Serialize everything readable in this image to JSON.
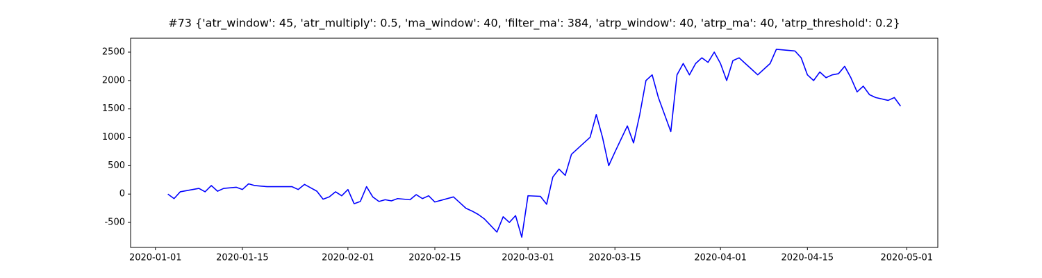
{
  "chart_data": {
    "type": "line",
    "title": "#73 {'atr_window': 45, 'atr_multiply': 0.5, 'ma_window': 40, 'filter_ma': 384, 'atrp_window': 40, 'atrp_ma': 40, 'atrp_threshold': 0.2}",
    "x": [
      "2020-01-03",
      "2020-01-04",
      "2020-01-05",
      "2020-01-08",
      "2020-01-09",
      "2020-01-10",
      "2020-01-11",
      "2020-01-12",
      "2020-01-14",
      "2020-01-15",
      "2020-01-16",
      "2020-01-17",
      "2020-01-18",
      "2020-01-19",
      "2020-01-23",
      "2020-01-24",
      "2020-01-25",
      "2020-01-26",
      "2020-01-27",
      "2020-01-28",
      "2020-01-29",
      "2020-01-30",
      "2020-01-31",
      "2020-02-01",
      "2020-02-02",
      "2020-02-03",
      "2020-02-04",
      "2020-02-05",
      "2020-02-06",
      "2020-02-07",
      "2020-02-08",
      "2020-02-09",
      "2020-02-11",
      "2020-02-12",
      "2020-02-13",
      "2020-02-14",
      "2020-02-15",
      "2020-02-16",
      "2020-02-18",
      "2020-02-19",
      "2020-02-20",
      "2020-02-21",
      "2020-02-22",
      "2020-02-23",
      "2020-02-25",
      "2020-02-26",
      "2020-02-27",
      "2020-02-28",
      "2020-02-29",
      "2020-03-01",
      "2020-03-03",
      "2020-03-04",
      "2020-03-05",
      "2020-03-06",
      "2020-03-07",
      "2020-03-08",
      "2020-03-10",
      "2020-03-11",
      "2020-03-12",
      "2020-03-13",
      "2020-03-14",
      "2020-03-15",
      "2020-03-17",
      "2020-03-18",
      "2020-03-19",
      "2020-03-20",
      "2020-03-21",
      "2020-03-22",
      "2020-03-24",
      "2020-03-25",
      "2020-03-26",
      "2020-03-27",
      "2020-03-28",
      "2020-03-29",
      "2020-03-30",
      "2020-03-31",
      "2020-04-01",
      "2020-04-02",
      "2020-04-03",
      "2020-04-04",
      "2020-04-05",
      "2020-04-06",
      "2020-04-07",
      "2020-04-08",
      "2020-04-09",
      "2020-04-10",
      "2020-04-13",
      "2020-04-14",
      "2020-04-15",
      "2020-04-16",
      "2020-04-17",
      "2020-04-18",
      "2020-04-19",
      "2020-04-20",
      "2020-04-21",
      "2020-04-22",
      "2020-04-23",
      "2020-04-24",
      "2020-04-25",
      "2020-04-26",
      "2020-04-28",
      "2020-04-29",
      "2020-04-30"
    ],
    "values": [
      0,
      -80,
      40,
      100,
      40,
      150,
      50,
      100,
      120,
      80,
      180,
      150,
      140,
      130,
      130,
      80,
      170,
      110,
      50,
      -90,
      -50,
      40,
      -30,
      80,
      -170,
      -130,
      130,
      -50,
      -130,
      -100,
      -120,
      -80,
      -100,
      -10,
      -80,
      -30,
      -140,
      -110,
      -50,
      -150,
      -250,
      -300,
      -360,
      -440,
      -670,
      -400,
      -500,
      -380,
      -760,
      -30,
      -40,
      -180,
      300,
      440,
      330,
      700,
      900,
      1000,
      1400,
      1000,
      500,
      740,
      1200,
      900,
      1400,
      2000,
      2100,
      1700,
      1100,
      2100,
      2300,
      2100,
      2300,
      2400,
      2320,
      2500,
      2300,
      2000,
      2350,
      2400,
      2300,
      2200,
      2100,
      2200,
      2300,
      2550,
      2520,
      2400,
      2100,
      2000,
      2150,
      2050,
      2100,
      2120,
      2250,
      2050,
      1800,
      1900,
      1750,
      1700,
      1650,
      1700,
      1550
    ],
    "color": "#0000ff",
    "xlim": [
      "2019-12-28",
      "2020-05-06"
    ],
    "xticks": [
      "2020-01-01",
      "2020-01-15",
      "2020-02-01",
      "2020-02-15",
      "2020-03-01",
      "2020-03-15",
      "2020-04-01",
      "2020-04-15",
      "2020-05-01"
    ],
    "ylim": [
      -940,
      2745
    ],
    "yticks": [
      -500,
      0,
      500,
      1000,
      1500,
      2000,
      2500
    ],
    "grid": false
  }
}
